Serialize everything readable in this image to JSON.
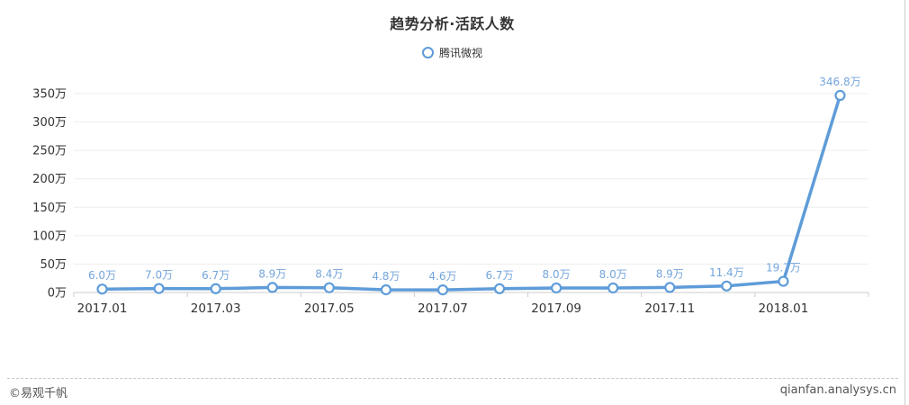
{
  "page": {
    "footer_left": "©易观千帆",
    "footer_right": "qianfan.analysys.cn"
  },
  "chart_data": {
    "type": "line",
    "title": "趋势分析·活跃人数",
    "legend": [
      "腾讯微视"
    ],
    "legend_marker": "hollow-circle",
    "unit": "万",
    "xtick_labels": [
      "2017.01",
      "2017.03",
      "2017.05",
      "2017.07",
      "2017.09",
      "2017.11",
      "2018.01"
    ],
    "series": [
      {
        "name": "腾讯微视",
        "values": [
          6.0,
          7.0,
          6.7,
          8.9,
          8.4,
          4.8,
          4.6,
          6.7,
          8.0,
          8.0,
          8.9,
          11.4,
          19.7,
          346.8
        ],
        "point_labels": [
          "6.0万",
          "7.0万",
          "6.7万",
          "8.9万",
          "8.4万",
          "4.8万",
          "4.6万",
          "6.7万",
          "8.0万",
          "8.0万",
          "8.9万",
          "11.4万",
          "19.7万",
          "346.8万"
        ]
      }
    ],
    "ylim": [
      0,
      350
    ],
    "ytick_labels": [
      "0万",
      "50万",
      "100万",
      "150万",
      "200万",
      "250万",
      "300万",
      "350万"
    ],
    "grid_on": true,
    "legend_position": "top-center",
    "colors": {
      "line": "#5E9CD9",
      "point_fill": "#ffffff",
      "data_label": "#74A5DB",
      "grid_line": "#eeeeee",
      "axis_line": "#cccccc",
      "axis_text": "#333333",
      "title_text": "#333333",
      "footer_text": "#555555"
    }
  }
}
